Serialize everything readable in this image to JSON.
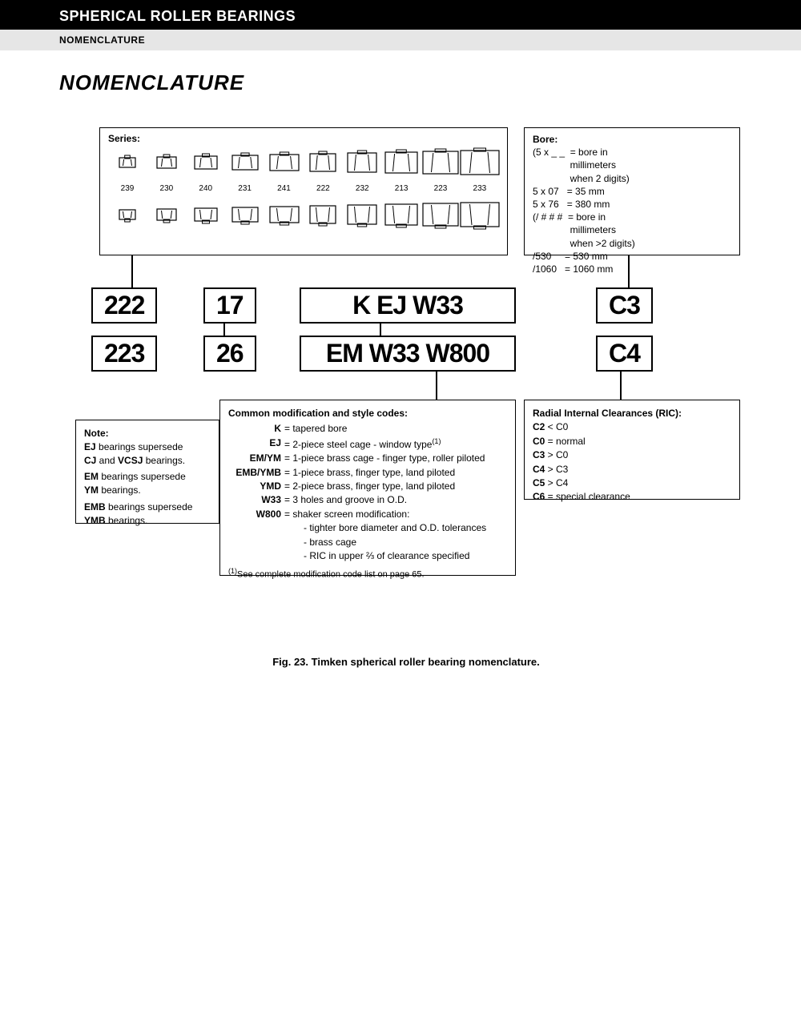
{
  "header": {
    "title": "SPHERICAL ROLLER BEARINGS",
    "sub": "NOMENCLATURE"
  },
  "page_title": "NOMENCLATURE",
  "series": {
    "title": "Series:",
    "items": [
      "239",
      "230",
      "240",
      "231",
      "241",
      "222",
      "232",
      "213",
      "223",
      "233"
    ]
  },
  "bore": {
    "title": "Bore:",
    "lines": [
      "(5 x _ _  = bore in",
      "              millimeters",
      "              when 2 digits)",
      "5 x 07   = 35 mm",
      "5 x 76   = 380 mm",
      "(/ # # #  = bore in",
      "              millimeters",
      "              when >2 digits)",
      "/530     = 530 mm",
      "/1060   = 1060 mm"
    ]
  },
  "codes": {
    "r1": {
      "a": "222",
      "b": "17",
      "c": "K EJ W33",
      "d": "C3"
    },
    "r2": {
      "a": "223",
      "b": "26",
      "c": "EM W33 W800",
      "d": "C4"
    }
  },
  "note": {
    "title": "Note:",
    "l1a": "EJ",
    "l1b": " bearings supersede",
    "l2a": "CJ",
    "l2b": " and ",
    "l2c": "VCSJ",
    "l2d": " bearings.",
    "l3a": "EM",
    "l3b": " bearings supersede",
    "l4a": "YM",
    "l4b": " bearings.",
    "l5a": "EMB",
    "l5b": " bearings supersede",
    "l6a": "YMB",
    "l6b": " bearings."
  },
  "mods": {
    "title": "Common modification and style codes:",
    "rows": [
      {
        "k": "K",
        "v": "=  tapered bore"
      },
      {
        "k": "EJ",
        "v": "=  2-piece steel cage - window type",
        "sup": "(1)"
      },
      {
        "k": "EM/YM",
        "v": "=  1-piece brass cage - finger type, roller piloted"
      },
      {
        "k": "EMB/YMB",
        "v": "=  1-piece brass, finger type, land piloted"
      },
      {
        "k": "YMD",
        "v": "=  2-piece brass, finger type, land piloted"
      },
      {
        "k": "W33",
        "v": "=  3 holes and groove in O.D."
      },
      {
        "k": "W800",
        "v": "=  shaker screen modification:"
      }
    ],
    "subs": [
      "- tighter bore diameter and O.D. tolerances",
      "- brass cage",
      "- RIC in upper ⅔ of clearance specified"
    ],
    "foot_sup": "(1)",
    "foot": "See complete modification code list on page 65."
  },
  "ric": {
    "title": "Radial Internal Clearances (RIC):",
    "rows": [
      {
        "k": "C2",
        "v": " < C0"
      },
      {
        "k": "C0",
        "v": " = normal"
      },
      {
        "k": "C3",
        "v": " > C0"
      },
      {
        "k": "C4",
        "v": " > C3"
      },
      {
        "k": "C5",
        "v": " > C4"
      },
      {
        "k": "C6",
        "v": " = special clearance"
      }
    ]
  },
  "caption": "Fig. 23. Timken spherical roller bearing nomenclature."
}
